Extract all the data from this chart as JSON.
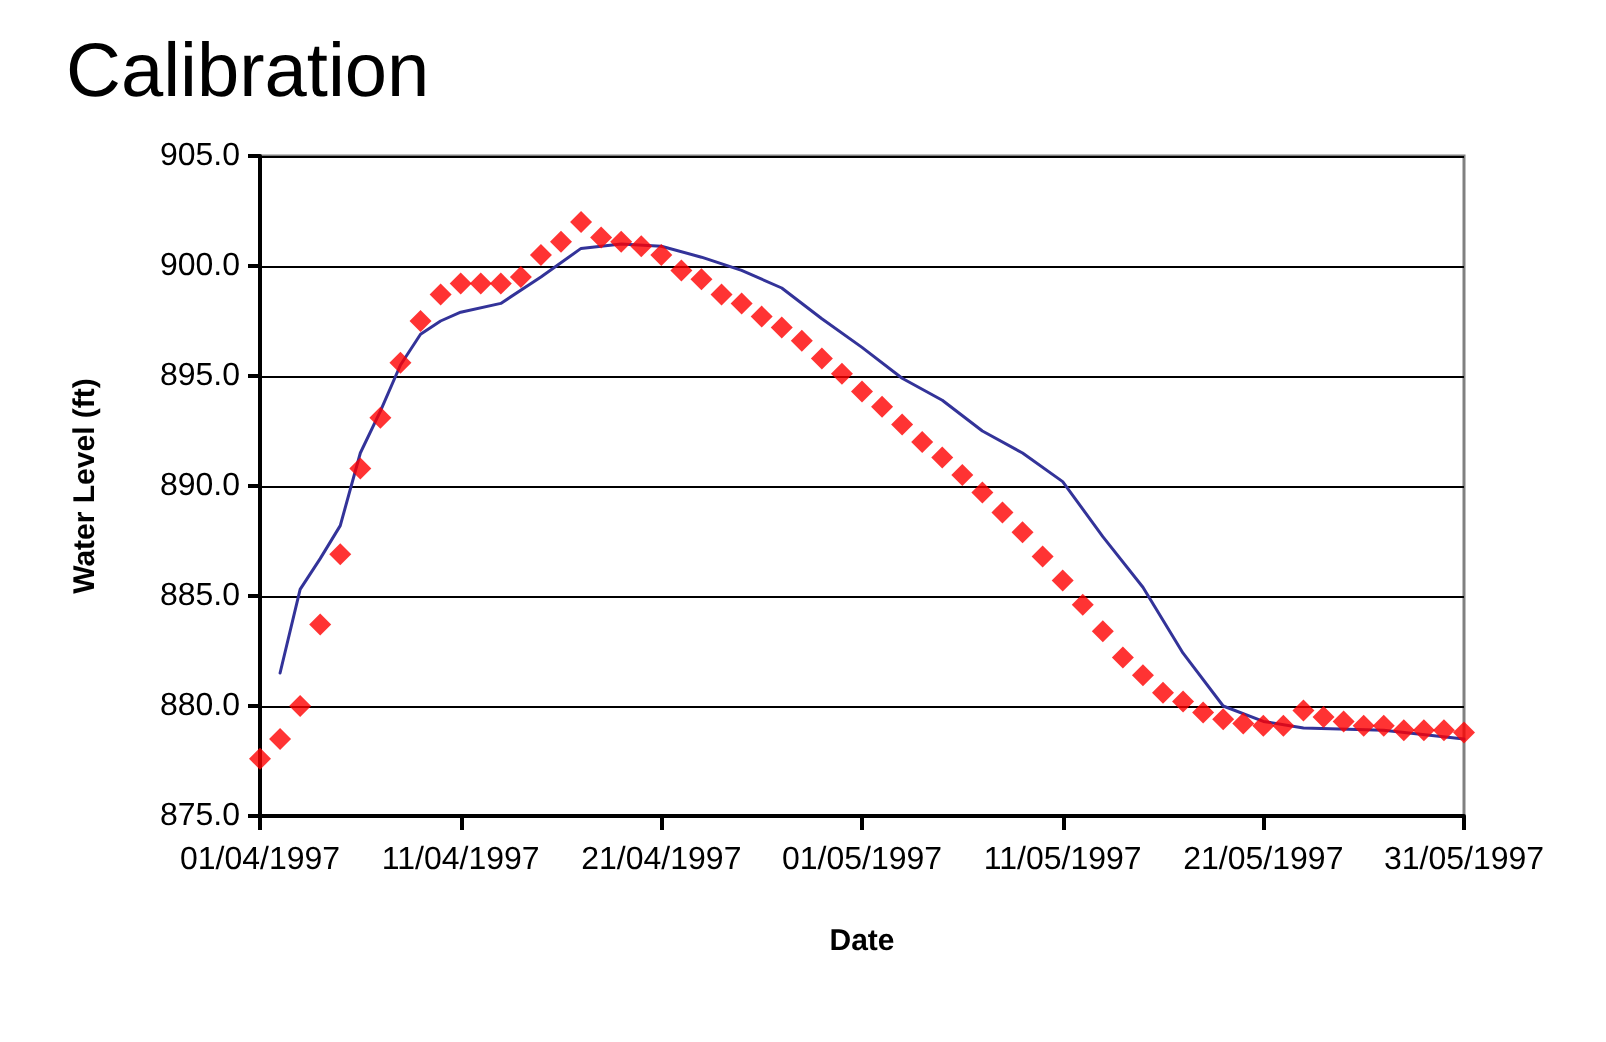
{
  "chart_data": {
    "type": "line",
    "title": "Calibration",
    "xlabel": "Date",
    "ylabel": "Water Level (ft)",
    "xlim": [
      "1997-04-01",
      "1997-05-31"
    ],
    "xticks": [
      {
        "value": "1997-04-01",
        "label": "01/04/1997"
      },
      {
        "value": "1997-04-11",
        "label": "11/04/1997"
      },
      {
        "value": "1997-04-21",
        "label": "21/04/1997"
      },
      {
        "value": "1997-05-01",
        "label": "01/05/1997"
      },
      {
        "value": "1997-05-11",
        "label": "11/05/1997"
      },
      {
        "value": "1997-05-21",
        "label": "21/05/1997"
      },
      {
        "value": "1997-05-31",
        "label": "31/05/1997"
      }
    ],
    "ylim": [
      875,
      905
    ],
    "yticks": [
      {
        "value": 875,
        "label": "875.0"
      },
      {
        "value": 880,
        "label": "880.0"
      },
      {
        "value": 885,
        "label": "885.0"
      },
      {
        "value": 890,
        "label": "890.0"
      },
      {
        "value": 895,
        "label": "895.0"
      },
      {
        "value": 900,
        "label": "900.0"
      },
      {
        "value": 905,
        "label": "905.0"
      }
    ],
    "grid": "y",
    "series": [
      {
        "color": "#333399",
        "marker": "none",
        "line_style": "solid",
        "x": [
          "1997-04-02",
          "1997-04-03",
          "1997-04-04",
          "1997-04-05",
          "1997-04-06",
          "1997-04-07",
          "1997-04-08",
          "1997-04-09",
          "1997-04-10",
          "1997-04-11",
          "1997-04-13",
          "1997-04-15",
          "1997-04-17",
          "1997-04-19",
          "1997-04-21",
          "1997-04-23",
          "1997-04-25",
          "1997-04-27",
          "1997-04-29",
          "1997-05-01",
          "1997-05-03",
          "1997-05-05",
          "1997-05-07",
          "1997-05-09",
          "1997-05-11",
          "1997-05-13",
          "1997-05-15",
          "1997-05-17",
          "1997-05-19",
          "1997-05-21",
          "1997-05-23",
          "1997-05-27",
          "1997-05-31"
        ],
        "values": [
          881.5,
          885.3,
          886.7,
          888.2,
          891.5,
          893.4,
          895.5,
          896.9,
          897.5,
          897.9,
          898.3,
          899.5,
          900.8,
          901.0,
          900.9,
          900.4,
          899.8,
          899.0,
          897.6,
          896.3,
          894.9,
          893.9,
          892.5,
          891.5,
          890.2,
          887.7,
          885.4,
          882.4,
          880.0,
          879.3,
          879.0,
          878.9,
          878.5
        ]
      },
      {
        "type": "scatter",
        "color": "#ff0000",
        "marker": "diamond",
        "x": [
          "1997-04-01",
          "1997-04-02",
          "1997-04-03",
          "1997-04-04",
          "1997-04-05",
          "1997-04-06",
          "1997-04-07",
          "1997-04-08",
          "1997-04-09",
          "1997-04-10",
          "1997-04-11",
          "1997-04-12",
          "1997-04-13",
          "1997-04-14",
          "1997-04-15",
          "1997-04-16",
          "1997-04-17",
          "1997-04-18",
          "1997-04-19",
          "1997-04-20",
          "1997-04-21",
          "1997-04-22",
          "1997-04-23",
          "1997-04-24",
          "1997-04-25",
          "1997-04-26",
          "1997-04-27",
          "1997-04-28",
          "1997-04-29",
          "1997-04-30",
          "1997-05-01",
          "1997-05-02",
          "1997-05-03",
          "1997-05-04",
          "1997-05-05",
          "1997-05-06",
          "1997-05-07",
          "1997-05-08",
          "1997-05-09",
          "1997-05-10",
          "1997-05-11",
          "1997-05-12",
          "1997-05-13",
          "1997-05-14",
          "1997-05-15",
          "1997-05-16",
          "1997-05-17",
          "1997-05-18",
          "1997-05-19",
          "1997-05-20",
          "1997-05-21",
          "1997-05-22",
          "1997-05-23",
          "1997-05-24",
          "1997-05-25",
          "1997-05-26",
          "1997-05-27",
          "1997-05-28",
          "1997-05-29",
          "1997-05-30",
          "1997-05-31"
        ],
        "values": [
          877.6,
          878.5,
          880.0,
          883.7,
          886.9,
          890.8,
          893.1,
          895.6,
          897.5,
          898.7,
          899.2,
          899.2,
          899.2,
          899.5,
          900.5,
          901.1,
          902.0,
          901.3,
          901.1,
          900.9,
          900.5,
          899.8,
          899.4,
          898.7,
          898.3,
          897.7,
          897.2,
          896.6,
          895.8,
          895.1,
          894.3,
          893.6,
          892.8,
          892.0,
          891.3,
          890.5,
          889.7,
          888.8,
          887.9,
          886.8,
          885.7,
          884.6,
          883.4,
          882.2,
          881.4,
          880.6,
          880.2,
          879.7,
          879.4,
          879.2,
          879.1,
          879.1,
          879.8,
          879.5,
          879.3,
          879.1,
          879.1,
          878.9,
          878.9,
          878.9,
          878.8
        ]
      }
    ]
  }
}
